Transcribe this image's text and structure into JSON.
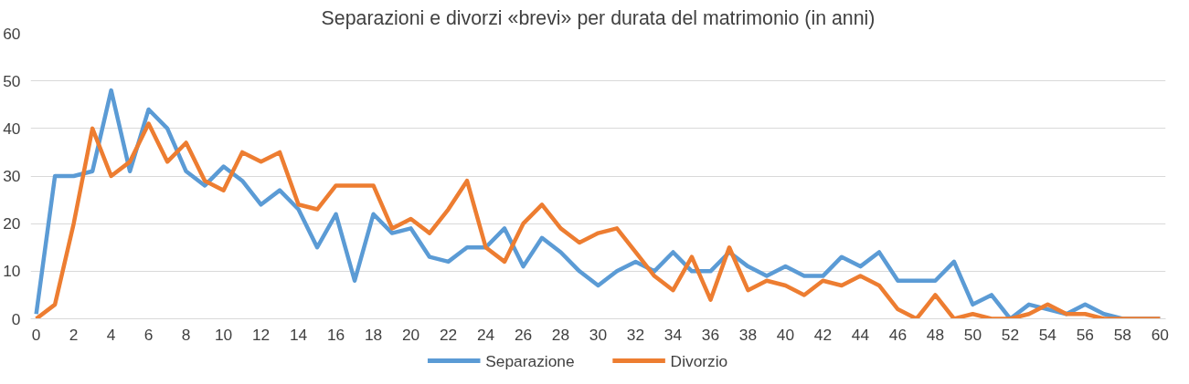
{
  "chart_data": {
    "type": "line",
    "title": "Separazioni e divorzi «brevi» per durata del matrimonio (in anni)",
    "x": [
      0,
      1,
      2,
      3,
      4,
      5,
      6,
      7,
      8,
      9,
      10,
      11,
      12,
      13,
      14,
      15,
      16,
      17,
      18,
      19,
      20,
      21,
      22,
      23,
      24,
      25,
      26,
      27,
      28,
      29,
      30,
      31,
      32,
      33,
      34,
      35,
      36,
      37,
      38,
      39,
      40,
      41,
      42,
      43,
      44,
      45,
      46,
      47,
      48,
      49,
      50,
      51,
      52,
      53,
      54,
      55,
      56,
      57,
      58,
      59,
      60
    ],
    "series": [
      {
        "name": "Separazione",
        "color": "#5b9bd5",
        "values": [
          1,
          30,
          30,
          31,
          48,
          31,
          44,
          40,
          31,
          28,
          32,
          29,
          24,
          27,
          23,
          15,
          22,
          8,
          22,
          18,
          19,
          13,
          12,
          15,
          15,
          19,
          11,
          17,
          14,
          10,
          7,
          10,
          12,
          10,
          14,
          10,
          10,
          14,
          11,
          9,
          11,
          9,
          9,
          13,
          11,
          14,
          8,
          8,
          8,
          12,
          3,
          5,
          0,
          3,
          2,
          1,
          3,
          1,
          0,
          0,
          0
        ]
      },
      {
        "name": "Divorzio",
        "color": "#ed7d31",
        "values": [
          0,
          3,
          20,
          40,
          30,
          33,
          41,
          33,
          37,
          29,
          27,
          35,
          33,
          35,
          24,
          23,
          28,
          28,
          28,
          19,
          21,
          18,
          23,
          29,
          15,
          12,
          20,
          24,
          19,
          16,
          18,
          19,
          14,
          9,
          6,
          13,
          4,
          15,
          6,
          8,
          7,
          5,
          8,
          7,
          9,
          7,
          2,
          0,
          5,
          0,
          1,
          0,
          0,
          1,
          3,
          1,
          1,
          0,
          0,
          0,
          0
        ]
      }
    ],
    "xlim": [
      -0.3,
      60.3
    ],
    "xticks": [
      0,
      2,
      4,
      6,
      8,
      10,
      12,
      14,
      16,
      18,
      20,
      22,
      24,
      26,
      28,
      30,
      32,
      34,
      36,
      38,
      40,
      42,
      44,
      46,
      48,
      50,
      52,
      54,
      56,
      58,
      60
    ],
    "ylim": [
      0,
      60
    ],
    "yticks": [
      0,
      10,
      20,
      30,
      40,
      50,
      60
    ],
    "grid": "y",
    "legend": "bottom",
    "line_style": "solid",
    "marker": "none"
  }
}
